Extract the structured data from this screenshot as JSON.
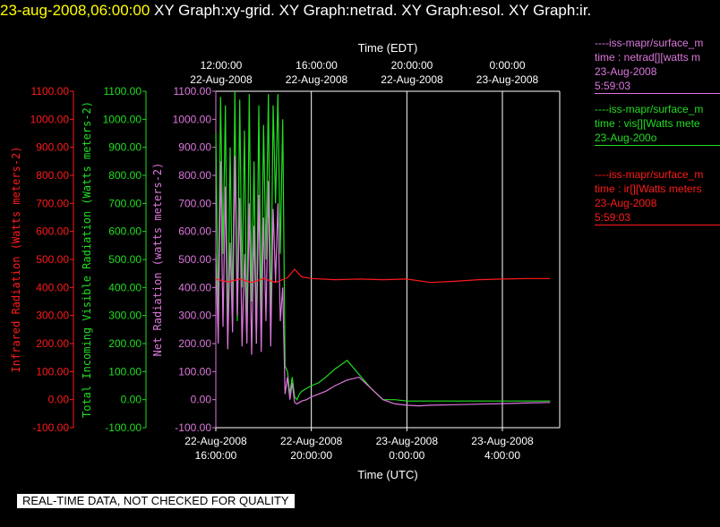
{
  "header": {
    "timestamp": "23-aug-2008,06:00:00",
    "graphs": "XY Graph:xy-grid.  XY Graph:netrad.  XY Graph:esol.  XY Graph:ir."
  },
  "colors": {
    "ir": "#ff1a1a",
    "vis": "#22dd22",
    "net": "#dd77dd",
    "axis": "#ffffff"
  },
  "legend": [
    {
      "series": "net",
      "line1": "----iss-mapr/surface_m",
      "line2": "time : netrad[][watts m",
      "line3": "23-Aug-2008",
      "line4": "5:59:03"
    },
    {
      "series": "vis",
      "line1": "----iss-mapr/surface_m",
      "line2": "time : vis[][Watts mete",
      "line3": "23-Aug-200o",
      "line4": ""
    },
    {
      "series": "ir",
      "line1": "----iss-mapr/surface_m",
      "line2": "time : ir[][Watts meters",
      "line3": "23-Aug-2008",
      "line4": "5:59:03"
    }
  ],
  "quality_note": "REAL-TIME DATA, NOT CHECKED FOR QUALITY",
  "chart_data": {
    "type": "line",
    "top_axis": {
      "label": "Time (EDT)",
      "ticks": [
        {
          "t1": "12:00:00",
          "t2": "22-Aug-2008"
        },
        {
          "t1": "16:00:00",
          "t2": "22-Aug-2008"
        },
        {
          "t1": "20:00:00",
          "t2": "22-Aug-2008"
        },
        {
          "t1": "0:00:00",
          "t2": "23-Aug-2008"
        }
      ]
    },
    "bottom_axis": {
      "label": "Time (UTC)",
      "ticks": [
        {
          "t1": "22-Aug-2008",
          "t2": "16:00:00"
        },
        {
          "t1": "22-Aug-2008",
          "t2": "20:00:00"
        },
        {
          "t1": "23-Aug-2008",
          "t2": "0:00:00"
        },
        {
          "t1": "23-Aug-2008",
          "t2": "4:00:00"
        }
      ]
    },
    "xlim_hours": [
      0,
      14.4
    ],
    "x_tick_hours": [
      0,
      4,
      8,
      12
    ],
    "y_axes": [
      {
        "key": "ir",
        "label": "Infrared Radiation (Watts meters-2)"
      },
      {
        "key": "vis",
        "label": "Total Incoming Visible Radiation (Watts meters-2)"
      },
      {
        "key": "net",
        "label": "Net Radiation (watts meters-2)"
      }
    ],
    "ylim": [
      -100,
      1100
    ],
    "y_ticks": [
      "-100.00",
      "0.00",
      "100.00",
      "200.00",
      "300.00",
      "400.00",
      "500.00",
      "600.00",
      "700.00",
      "800.00",
      "900.00",
      "1000.00",
      "1100.00"
    ],
    "grid": true,
    "series": [
      {
        "key": "vis",
        "x": [
          0,
          0.1,
          0.2,
          0.3,
          0.4,
          0.5,
          0.6,
          0.7,
          0.8,
          0.9,
          1.0,
          1.1,
          1.2,
          1.3,
          1.4,
          1.5,
          1.6,
          1.7,
          1.8,
          1.9,
          2.0,
          2.1,
          2.2,
          2.3,
          2.4,
          2.5,
          2.6,
          2.7,
          2.8,
          2.9,
          3.0,
          3.1,
          3.2,
          3.3,
          3.4,
          3.5,
          3.6,
          3.8,
          4.0,
          4.3,
          4.6,
          5.0,
          5.5,
          6.0,
          6.5,
          7.0,
          7.5,
          8.0,
          8.5,
          9.0,
          10.0,
          11.0,
          12.0,
          13.0,
          14.0
        ],
        "y": [
          950,
          300,
          1080,
          520,
          1050,
          200,
          900,
          320,
          1100,
          280,
          1070,
          400,
          960,
          210,
          1090,
          350,
          850,
          200,
          1050,
          300,
          980,
          500,
          1090,
          250,
          1050,
          700,
          1090,
          520,
          1000,
          120,
          100,
          20,
          80,
          10,
          0,
          20,
          30,
          40,
          50,
          60,
          80,
          110,
          140,
          90,
          40,
          0,
          0,
          -5,
          -5,
          -5,
          -5,
          -5,
          -5,
          -5,
          -5
        ]
      },
      {
        "key": "net",
        "x": [
          0,
          0.1,
          0.2,
          0.3,
          0.4,
          0.5,
          0.6,
          0.7,
          0.8,
          0.9,
          1.0,
          1.1,
          1.2,
          1.3,
          1.4,
          1.5,
          1.6,
          1.7,
          1.8,
          1.9,
          2.0,
          2.1,
          2.2,
          2.3,
          2.4,
          2.5,
          2.6,
          2.7,
          2.8,
          2.9,
          3.0,
          3.1,
          3.2,
          3.3,
          3.4,
          3.6,
          3.8,
          4.0,
          4.3,
          4.6,
          5.0,
          5.5,
          6.0,
          6.5,
          7.0,
          7.5,
          8.0,
          8.5,
          9.0,
          10.0,
          11.0,
          12.0,
          13.0,
          14.0
        ],
        "y": [
          520,
          200,
          850,
          260,
          760,
          180,
          560,
          240,
          870,
          300,
          720,
          190,
          520,
          200,
          700,
          160,
          620,
          200,
          730,
          170,
          650,
          280,
          780,
          190,
          680,
          420,
          700,
          280,
          400,
          20,
          80,
          0,
          60,
          -10,
          -15,
          -5,
          0,
          10,
          20,
          30,
          50,
          70,
          80,
          40,
          0,
          -15,
          -20,
          -22,
          -20,
          -18,
          -16,
          -14,
          -12,
          -10
        ]
      },
      {
        "key": "ir",
        "x": [
          0,
          0.5,
          1.0,
          1.5,
          2.0,
          2.5,
          3.0,
          3.3,
          3.6,
          4.0,
          5.0,
          6.0,
          7.0,
          8.0,
          9.0,
          10.0,
          11.0,
          12.0,
          13.0,
          14.0
        ],
        "y": [
          430,
          420,
          430,
          418,
          432,
          418,
          435,
          465,
          438,
          432,
          428,
          430,
          428,
          430,
          418,
          422,
          428,
          430,
          432,
          432
        ]
      }
    ]
  }
}
